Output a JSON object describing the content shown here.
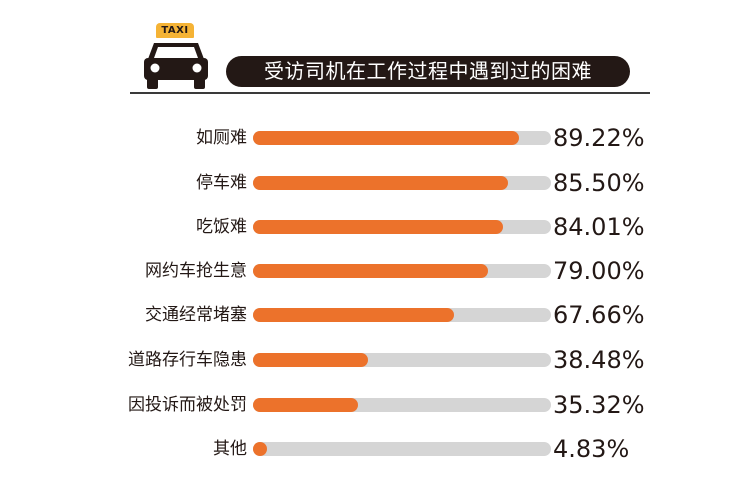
{
  "header": {
    "taxi_sign": "TAXI",
    "title": "受访司机在工作过程中遇到过的困难"
  },
  "colors": {
    "bar": "#ec722b",
    "track": "#d5d5d5",
    "title_bg": "#231815",
    "taxi_sign": "#f5b335"
  },
  "rows": [
    {
      "label": "如厕难",
      "value": 89.22,
      "text": "89.22%"
    },
    {
      "label": "停车难",
      "value": 85.5,
      "text": "85.50%"
    },
    {
      "label": "吃饭难",
      "value": 84.01,
      "text": "84.01%"
    },
    {
      "label": "网约车抢生意",
      "value": 79.0,
      "text": "79.00%"
    },
    {
      "label": "交通经常堵塞",
      "value": 67.66,
      "text": "67.66%"
    },
    {
      "label": "道路存行车隐患",
      "value": 38.48,
      "text": "38.48%"
    },
    {
      "label": "因投诉而被处罚",
      "value": 35.32,
      "text": "35.32%"
    },
    {
      "label": "其他",
      "value": 4.83,
      "text": "4.83%"
    }
  ],
  "chart_data": {
    "type": "bar",
    "orientation": "horizontal",
    "title": "受访司机在工作过程中遇到过的困难",
    "categories": [
      "如厕难",
      "停车难",
      "吃饭难",
      "网约车抢生意",
      "交通经常堵塞",
      "道路存行车隐患",
      "因投诉而被处罚",
      "其他"
    ],
    "values": [
      89.22,
      85.5,
      84.01,
      79.0,
      67.66,
      38.48,
      35.32,
      4.83
    ],
    "value_labels": [
      "89.22%",
      "85.50%",
      "84.01%",
      "79.00%",
      "67.66%",
      "38.48%",
      "35.32%",
      "4.83%"
    ],
    "xlabel": "",
    "ylabel": "",
    "xlim": [
      0,
      100
    ],
    "unit": "%",
    "grid": false,
    "legend": null
  }
}
